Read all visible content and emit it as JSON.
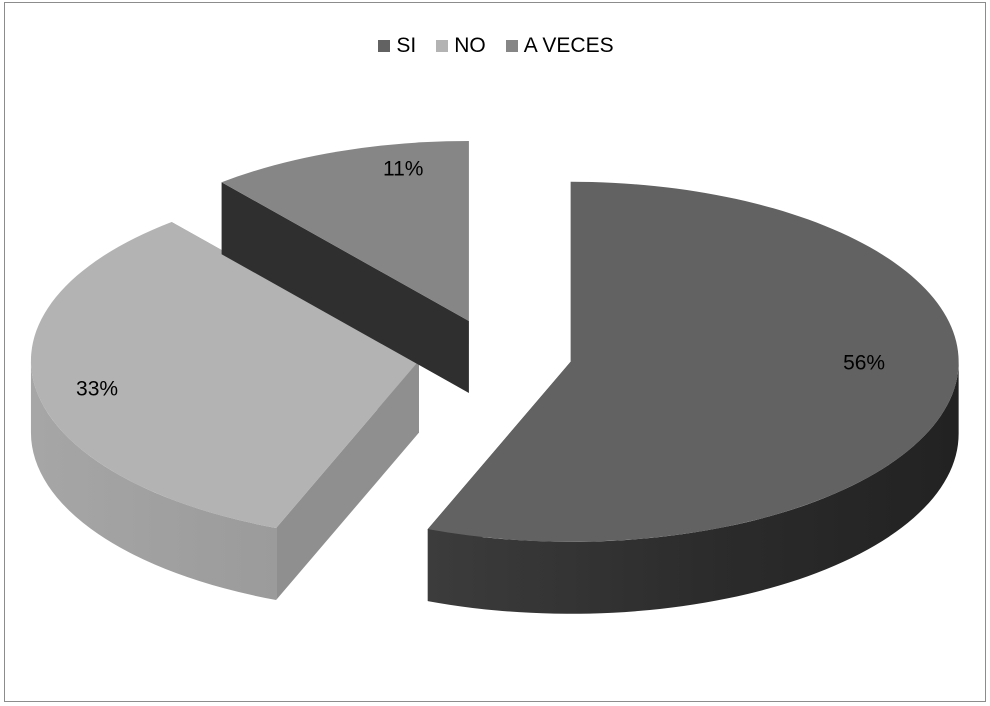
{
  "chart_data": {
    "type": "pie",
    "style": "3d-exploded",
    "title": "",
    "categories": [
      "SI",
      "NO",
      "A VECES"
    ],
    "values": [
      56,
      33,
      11
    ],
    "value_labels": [
      "56%",
      "33%",
      "11%"
    ],
    "colors": [
      "#626262",
      "#b3b3b3",
      "#868686"
    ],
    "legend_position": "top"
  }
}
